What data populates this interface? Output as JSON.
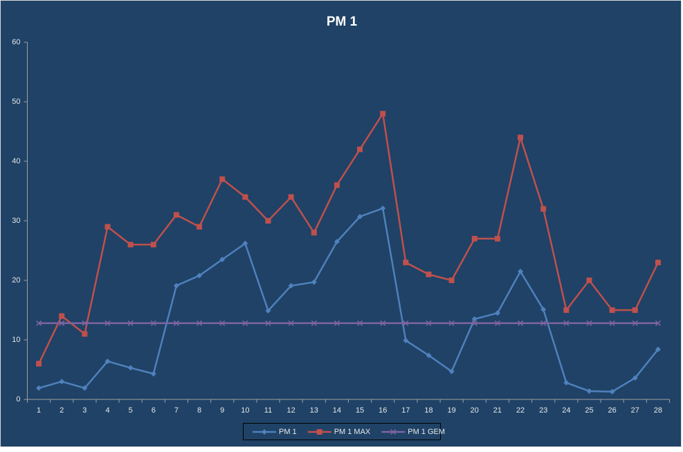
{
  "chart_data": {
    "type": "line",
    "title": "PM 1",
    "categories": [
      "1",
      "2",
      "3",
      "4",
      "5",
      "6",
      "7",
      "8",
      "9",
      "10",
      "11",
      "12",
      "13",
      "14",
      "15",
      "16",
      "17",
      "18",
      "19",
      "20",
      "21",
      "22",
      "23",
      "24",
      "25",
      "26",
      "27",
      "28"
    ],
    "series": [
      {
        "name": "PM 1",
        "color": "#4f81bd",
        "marker": "diamond",
        "values": [
          1.9,
          3.0,
          1.9,
          6.4,
          5.3,
          4.3,
          19.1,
          20.8,
          23.5,
          26.2,
          14.9,
          19.1,
          19.7,
          26.5,
          30.7,
          32.1,
          9.9,
          7.4,
          4.7,
          13.5,
          14.5,
          21.5,
          15.1,
          2.8,
          1.4,
          1.3,
          3.6,
          8.4
        ]
      },
      {
        "name": "PM 1 MAX",
        "color": "#c0504d",
        "marker": "square",
        "values": [
          6,
          14,
          11,
          29,
          26,
          26,
          31,
          29,
          37,
          34,
          30,
          34,
          28,
          36,
          42,
          48,
          23,
          21,
          20,
          27,
          27,
          44,
          32,
          15,
          20,
          15,
          15,
          23
        ]
      },
      {
        "name": "PM 1 GEM",
        "color": "#8064a2",
        "marker": "x",
        "values": [
          12.8,
          12.8,
          12.8,
          12.8,
          12.8,
          12.8,
          12.8,
          12.8,
          12.8,
          12.8,
          12.8,
          12.8,
          12.8,
          12.8,
          12.8,
          12.8,
          12.8,
          12.8,
          12.8,
          12.8,
          12.8,
          12.8,
          12.8,
          12.8,
          12.8,
          12.8,
          12.8,
          12.8
        ]
      }
    ],
    "ylim": [
      0,
      60
    ],
    "yticks": [
      0,
      10,
      20,
      30,
      40,
      50,
      60
    ],
    "grid": false,
    "legend": "bottom"
  }
}
